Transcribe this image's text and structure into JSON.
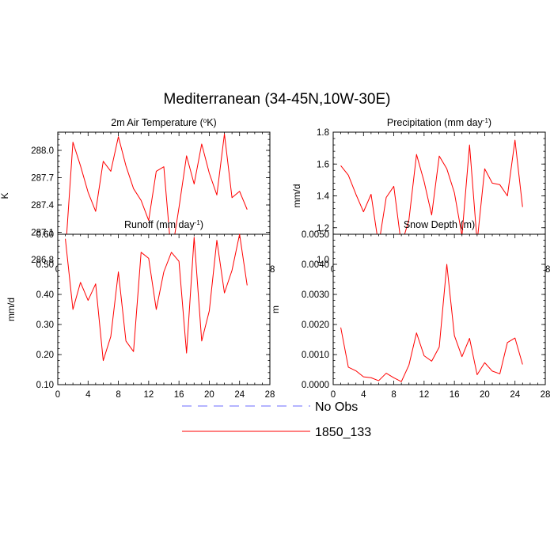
{
  "figure_title": "Mediterranean (34-45N,10W-30E)",
  "colors": {
    "model": "#ff0000",
    "obs": "#6b6bff",
    "axis": "#000000"
  },
  "legend": {
    "entries": [
      {
        "label": "No Obs",
        "style": "dashed"
      },
      {
        "label": "1850_133",
        "style": "solid"
      }
    ]
  },
  "chart_data": [
    {
      "type": "line",
      "title": "2m Air Temperature (°K)",
      "ylabel": "K",
      "xlim": [
        0,
        28
      ],
      "xticks": [
        0,
        4,
        8,
        12,
        16,
        20,
        24,
        28
      ],
      "ylim": [
        286.8,
        288.2
      ],
      "yticks": [
        "286.8",
        "287.1",
        "287.4",
        "287.7",
        "288.0"
      ],
      "series": [
        {
          "name": "1850_133",
          "x": [
            1,
            2,
            3,
            4,
            5,
            6,
            7,
            8,
            9,
            10,
            11,
            12,
            13,
            14,
            15,
            16,
            17,
            18,
            19,
            20,
            21,
            22,
            23,
            24,
            25
          ],
          "values": [
            286.86,
            288.09,
            287.83,
            287.54,
            287.33,
            287.88,
            287.77,
            288.15,
            287.83,
            287.58,
            287.45,
            287.23,
            287.77,
            287.82,
            286.84,
            287.37,
            287.94,
            287.63,
            288.07,
            287.75,
            287.51,
            288.18,
            287.48,
            287.55,
            287.35
          ]
        }
      ]
    },
    {
      "type": "line",
      "title": "Precipitation (mm day-1)",
      "ylabel": "mm/d",
      "xlim": [
        0,
        28
      ],
      "xticks": [
        0,
        4,
        8,
        12,
        16,
        20,
        24,
        28
      ],
      "ylim": [
        1.0,
        1.8
      ],
      "yticks": [
        "1.0",
        "1.2",
        "1.4",
        "1.6",
        "1.8"
      ],
      "series": [
        {
          "name": "1850_133",
          "x": [
            1,
            2,
            3,
            4,
            5,
            6,
            7,
            8,
            9,
            10,
            11,
            12,
            13,
            14,
            15,
            16,
            17,
            18,
            19,
            20,
            21,
            22,
            23,
            24,
            25
          ],
          "values": [
            1.59,
            1.53,
            1.41,
            1.3,
            1.41,
            1.09,
            1.39,
            1.46,
            1.09,
            1.25,
            1.66,
            1.49,
            1.28,
            1.65,
            1.57,
            1.42,
            1.15,
            1.72,
            1.11,
            1.57,
            1.48,
            1.47,
            1.4,
            1.75,
            1.33
          ]
        }
      ]
    },
    {
      "type": "line",
      "title": "Runoff (mm day-1)",
      "ylabel": "mm/d",
      "xlim": [
        0,
        28
      ],
      "xticks": [
        0,
        4,
        8,
        12,
        16,
        20,
        24,
        28
      ],
      "ylim": [
        0.1,
        0.6
      ],
      "yticks": [
        "0.10",
        "0.20",
        "0.30",
        "0.40",
        "0.50",
        "0.60"
      ],
      "series": [
        {
          "name": "1850_133",
          "x": [
            1,
            2,
            3,
            4,
            5,
            6,
            7,
            8,
            9,
            10,
            11,
            12,
            13,
            14,
            15,
            16,
            17,
            18,
            19,
            20,
            21,
            22,
            23,
            24,
            25
          ],
          "values": [
            0.585,
            0.35,
            0.44,
            0.38,
            0.435,
            0.18,
            0.26,
            0.475,
            0.245,
            0.21,
            0.54,
            0.52,
            0.35,
            0.475,
            0.54,
            0.51,
            0.205,
            0.59,
            0.245,
            0.345,
            0.58,
            0.405,
            0.48,
            0.6,
            0.43
          ]
        }
      ]
    },
    {
      "type": "line",
      "title": "Snow Depth (m)",
      "ylabel": "m",
      "xlim": [
        0,
        28
      ],
      "xticks": [
        0,
        4,
        8,
        12,
        16,
        20,
        24,
        28
      ],
      "ylim": [
        0.0,
        0.005
      ],
      "yticks": [
        "0.0000",
        "0.0010",
        "0.0020",
        "0.0030",
        "0.0040",
        "0.0050"
      ],
      "series": [
        {
          "name": "1850_133",
          "x": [
            1,
            2,
            3,
            4,
            5,
            6,
            7,
            8,
            9,
            10,
            11,
            12,
            13,
            14,
            15,
            16,
            17,
            18,
            19,
            20,
            21,
            22,
            23,
            24,
            25
          ],
          "values": [
            0.0019,
            0.00058,
            0.00046,
            0.00026,
            0.00023,
            0.00013,
            0.00038,
            0.00023,
            0.0001,
            0.00065,
            0.00172,
            0.00096,
            0.00078,
            0.00125,
            0.004,
            0.00163,
            0.00093,
            0.00154,
            0.00033,
            0.00073,
            0.00045,
            0.00036,
            0.0014,
            0.00155,
            0.00067
          ]
        }
      ]
    }
  ]
}
